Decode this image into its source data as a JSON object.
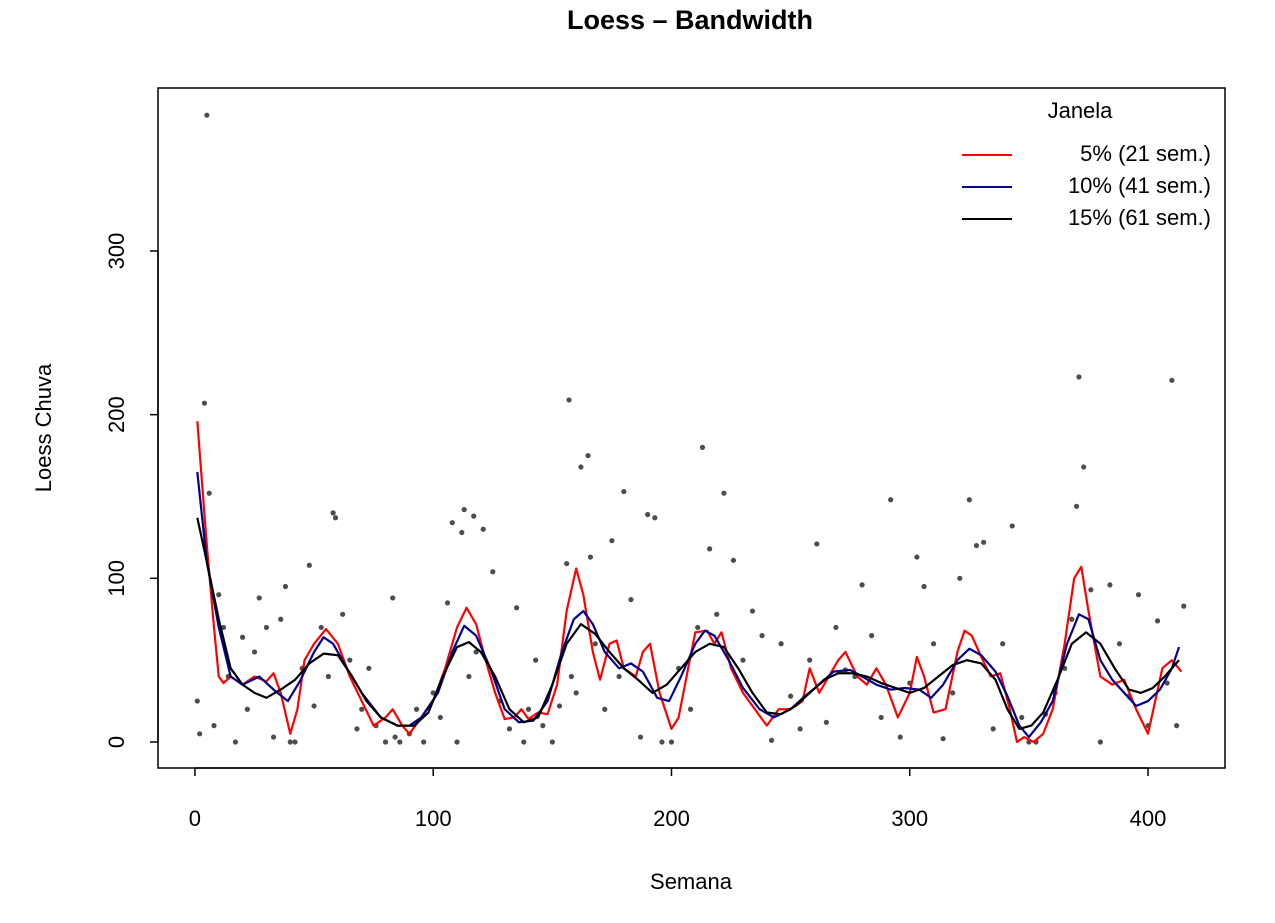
{
  "chart_data": {
    "type": "line",
    "title": "Loess – Bandwidth",
    "x_label": "Semana",
    "y_label": "Loess Chuva",
    "xlim": [
      -15.5,
      432.3
    ],
    "ylim": [
      -15.9,
      399.6
    ],
    "xticks": [
      0,
      100,
      200,
      300,
      400
    ],
    "yticks": [
      0,
      100,
      200,
      300
    ],
    "legend_title": "Janela",
    "legend_position": "top-right",
    "points": {
      "color": "#4d4d4d",
      "x": [
        1,
        2,
        4,
        5,
        6,
        8,
        10,
        12,
        14,
        17,
        20,
        22,
        25,
        27,
        30,
        33,
        36,
        38,
        40,
        42,
        45,
        48,
        50,
        53,
        56,
        58,
        59,
        62,
        65,
        68,
        70,
        73,
        76,
        80,
        83,
        84,
        86,
        90,
        93,
        96,
        100,
        103,
        106,
        108,
        110,
        112,
        113,
        115,
        117,
        118,
        121,
        125,
        128,
        132,
        135,
        138,
        140,
        143,
        146,
        150,
        153,
        156,
        157,
        158,
        160,
        162,
        165,
        166,
        168,
        172,
        175,
        178,
        180,
        183,
        187,
        190,
        193,
        196,
        200,
        203,
        208,
        211,
        213,
        216,
        219,
        222,
        226,
        230,
        234,
        238,
        242,
        246,
        250,
        254,
        258,
        261,
        265,
        269,
        273,
        277,
        280,
        284,
        288,
        292,
        296,
        300,
        303,
        306,
        310,
        314,
        318,
        321,
        325,
        328,
        331,
        335,
        339,
        343,
        347,
        350,
        353,
        357,
        361,
        365,
        368,
        370,
        371,
        373,
        376,
        380,
        384,
        388,
        392,
        396,
        400,
        404,
        408,
        410,
        412,
        415
      ],
      "values": [
        25,
        5,
        207,
        383,
        152,
        10,
        90,
        70,
        40,
        0,
        64,
        20,
        55,
        88,
        70,
        3,
        75,
        95,
        0,
        0,
        45,
        108,
        22,
        70,
        40,
        140,
        137,
        78,
        50,
        8,
        20,
        45,
        10,
        0,
        88,
        3,
        0,
        5,
        20,
        0,
        30,
        15,
        85,
        134,
        0,
        128,
        142,
        40,
        138,
        55,
        130,
        104,
        25,
        8,
        82,
        0,
        20,
        50,
        10,
        0,
        22,
        109,
        209,
        40,
        30,
        168,
        175,
        113,
        60,
        20,
        123,
        40,
        153,
        87,
        3,
        139,
        137,
        0,
        0,
        45,
        20,
        70,
        180,
        118,
        78,
        152,
        111,
        50,
        80,
        65,
        1,
        60,
        28,
        8,
        50,
        121,
        12,
        70,
        44,
        40,
        96,
        65,
        15,
        148,
        3,
        36,
        113,
        95,
        60,
        2,
        30,
        100,
        148,
        120,
        122,
        8,
        60,
        132,
        15,
        0,
        0,
        17,
        30,
        45,
        75,
        144,
        223,
        168,
        93,
        0,
        96,
        60,
        28,
        90,
        10,
        74,
        36,
        221,
        10,
        83
      ]
    },
    "series": [
      {
        "name": "5% (21 sem.)",
        "color": "#ff0000",
        "x": [
          1,
          5,
          8,
          10,
          12,
          15,
          20,
          25,
          30,
          33,
          36,
          40,
          43,
          46,
          50,
          55,
          60,
          65,
          70,
          75,
          80,
          83,
          87,
          90,
          95,
          100,
          105,
          110,
          114,
          118,
          122,
          126,
          130,
          134,
          137,
          140,
          144,
          148,
          152,
          156,
          160,
          163,
          167,
          170,
          174,
          177,
          180,
          185,
          188,
          191,
          195,
          200,
          203,
          207,
          210,
          215,
          218,
          221,
          225,
          230,
          235,
          240,
          245,
          250,
          255,
          258,
          262,
          266,
          270,
          273,
          278,
          282,
          286,
          290,
          295,
          300,
          303,
          306,
          310,
          315,
          320,
          323,
          326,
          330,
          334,
          338,
          342,
          345,
          348,
          352,
          356,
          360,
          365,
          369,
          372,
          375,
          380,
          385,
          390,
          395,
          400,
          403,
          406,
          410,
          414
        ],
        "values": [
          196,
          120,
          70,
          40,
          36,
          40,
          35,
          40,
          37,
          42,
          30,
          5,
          20,
          50,
          60,
          69,
          60,
          40,
          25,
          10,
          15,
          20,
          10,
          5,
          15,
          25,
          45,
          70,
          82,
          72,
          50,
          30,
          14,
          15,
          20,
          14,
          18,
          17,
          35,
          80,
          106,
          90,
          55,
          38,
          60,
          62,
          45,
          40,
          55,
          60,
          30,
          8,
          15,
          45,
          67,
          68,
          60,
          67,
          45,
          30,
          20,
          10,
          20,
          20,
          25,
          45,
          30,
          40,
          50,
          55,
          40,
          35,
          45,
          35,
          15,
          30,
          52,
          40,
          18,
          20,
          55,
          68,
          65,
          52,
          40,
          42,
          20,
          0,
          3,
          0,
          5,
          20,
          60,
          100,
          107,
          80,
          40,
          35,
          38,
          20,
          5,
          25,
          45,
          50,
          43
        ]
      },
      {
        "name": "10% (41 sem.)",
        "color": "#00008b",
        "x": [
          1,
          5,
          10,
          15,
          20,
          27,
          33,
          39,
          44,
          50,
          54,
          58,
          63,
          70,
          78,
          85,
          90,
          95,
          102,
          108,
          113,
          118,
          124,
          130,
          136,
          142,
          148,
          154,
          159,
          163,
          167,
          172,
          178,
          183,
          188,
          194,
          199,
          204,
          210,
          214,
          218,
          224,
          230,
          237,
          243,
          250,
          256,
          262,
          268,
          275,
          280,
          286,
          292,
          298,
          304,
          309,
          314,
          320,
          325,
          330,
          336,
          341,
          346,
          350,
          355,
          360,
          366,
          371,
          375,
          380,
          385,
          390,
          395,
          400,
          405,
          410,
          413
        ],
        "values": [
          165,
          110,
          70,
          40,
          35,
          40,
          32,
          25,
          37,
          55,
          64,
          60,
          47,
          30,
          15,
          10,
          10,
          15,
          30,
          55,
          71,
          65,
          45,
          20,
          12,
          13,
          25,
          55,
          75,
          80,
          72,
          55,
          45,
          48,
          43,
          27,
          25,
          40,
          60,
          68,
          65,
          50,
          33,
          20,
          15,
          20,
          28,
          35,
          43,
          44,
          40,
          35,
          32,
          33,
          32,
          27,
          35,
          50,
          57,
          53,
          43,
          28,
          10,
          3,
          12,
          25,
          60,
          78,
          75,
          50,
          38,
          30,
          22,
          25,
          32,
          45,
          58
        ]
      },
      {
        "name": "15% (61 sem.)",
        "color": "#000000",
        "x": [
          1,
          5,
          10,
          15,
          20,
          25,
          30,
          36,
          42,
          48,
          54,
          60,
          66,
          72,
          78,
          85,
          92,
          98,
          104,
          110,
          115,
          120,
          126,
          132,
          138,
          144,
          150,
          156,
          162,
          168,
          174,
          180,
          186,
          192,
          198,
          204,
          210,
          216,
          222,
          228,
          234,
          240,
          246,
          252,
          258,
          264,
          270,
          276,
          282,
          288,
          294,
          300,
          306,
          312,
          318,
          324,
          330,
          336,
          341,
          346,
          351,
          356,
          362,
          368,
          374,
          380,
          386,
          392,
          397,
          402,
          407,
          413
        ],
        "values": [
          137,
          110,
          75,
          45,
          35,
          30,
          27,
          32,
          38,
          48,
          54,
          53,
          40,
          25,
          15,
          10,
          10,
          18,
          40,
          58,
          61,
          55,
          40,
          20,
          12,
          15,
          35,
          60,
          72,
          66,
          55,
          45,
          38,
          30,
          35,
          45,
          55,
          60,
          58,
          45,
          30,
          18,
          17,
          22,
          30,
          38,
          42,
          42,
          40,
          36,
          33,
          30,
          33,
          40,
          47,
          50,
          48,
          38,
          20,
          8,
          10,
          18,
          38,
          60,
          67,
          60,
          45,
          32,
          30,
          33,
          40,
          50
        ]
      }
    ]
  }
}
